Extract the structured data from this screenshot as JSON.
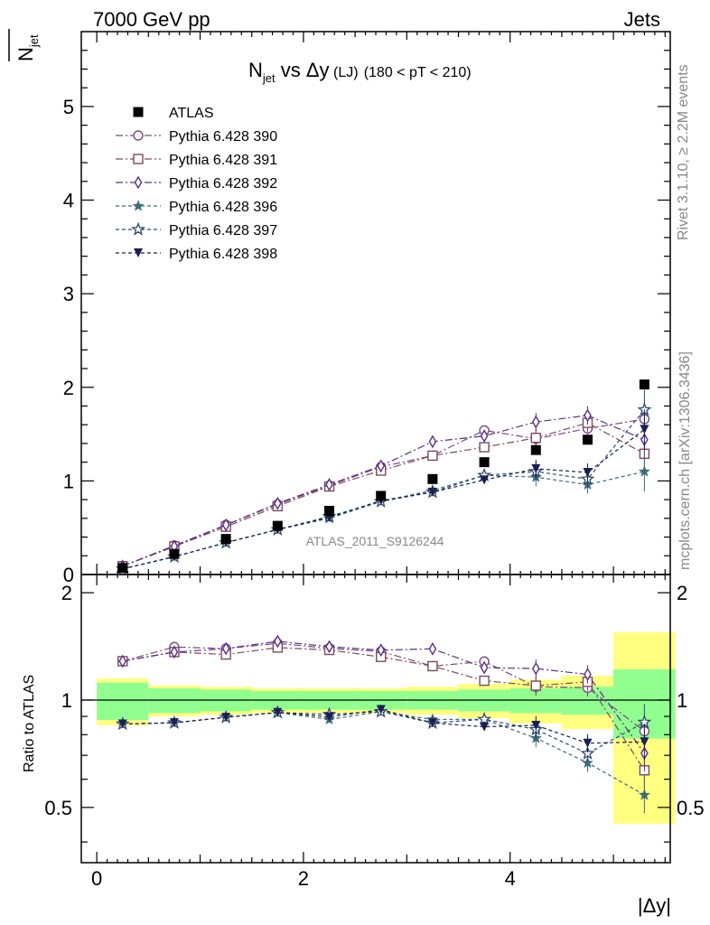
{
  "header": {
    "left": "7000 GeV pp",
    "right": "Jets"
  },
  "side_labels": {
    "rivet": "Rivet 3.1.10, ≥ 2.2M events",
    "mcplots": "mcplots.cern.ch [arXiv:1306.3436]"
  },
  "chart_data": {
    "type": "scatter",
    "title": "N_jet vs Δy (LJ) (180 < pT < 210)",
    "title_parts": {
      "n": "N",
      "sub": "jet",
      "vs": " vs ",
      "dy": "Δy",
      "lj": " (LJ)",
      "cut": "(180 < pT < 210)"
    },
    "watermark": "ATLAS_2011_S9126244",
    "xlabel": "|Δy|",
    "ylabel": {
      "n": "N",
      "sub": "jet"
    },
    "ratio_ylabel": "Ratio to ATLAS",
    "xlim": [
      -0.15,
      5.55
    ],
    "ylim": [
      0,
      5.8
    ],
    "ratio_ylim": [
      0.35,
      2.25
    ],
    "x_ticks": [
      "0",
      "2",
      "4"
    ],
    "y_ticks": [
      "0",
      "1",
      "2",
      "3",
      "4",
      "5"
    ],
    "ratio_ticks_left": [
      "0.5",
      "1",
      "2"
    ],
    "ratio_ticks_right": [
      "0.5",
      "1",
      "2"
    ],
    "x": [
      0.25,
      0.75,
      1.25,
      1.75,
      2.25,
      2.75,
      3.25,
      3.75,
      4.25,
      4.75,
      5.3
    ],
    "xerr": [
      0.25,
      0.25,
      0.25,
      0.25,
      0.25,
      0.25,
      0.25,
      0.25,
      0.25,
      0.25,
      0.3
    ],
    "data": {
      "name": "ATLAS",
      "color": "#000000",
      "values": [
        0.07,
        0.22,
        0.38,
        0.52,
        0.68,
        0.84,
        1.02,
        1.2,
        1.33,
        1.44,
        2.03
      ]
    },
    "series": [
      {
        "name": "Pythia 6.428 390",
        "color": "#7a4a7e",
        "marker": "circle-open",
        "dash": "8,3,2,3",
        "values": [
          0.09,
          0.31,
          0.53,
          0.75,
          0.95,
          1.15,
          1.27,
          1.54,
          1.45,
          1.56,
          1.66
        ]
      },
      {
        "name": "Pythia 6.428 391",
        "color": "#7d4a5e",
        "marker": "square-open",
        "dash": "8,3,2,3",
        "values": [
          0.09,
          0.3,
          0.51,
          0.73,
          0.94,
          1.11,
          1.27,
          1.36,
          1.46,
          1.62,
          1.29
        ]
      },
      {
        "name": "Pythia 6.428 392",
        "color": "#5a2e8a",
        "marker": "diamond-open",
        "dash": "8,3,2,3",
        "values": [
          0.09,
          0.3,
          0.53,
          0.76,
          0.96,
          1.16,
          1.42,
          1.48,
          1.63,
          1.7,
          1.44
        ]
      },
      {
        "name": "Pythia 6.428 396",
        "color": "#3f6a7a",
        "marker": "star-filled",
        "dash": "4,3",
        "values": [
          0.06,
          0.19,
          0.34,
          0.48,
          0.6,
          0.78,
          0.9,
          1.06,
          1.04,
          0.96,
          1.1
        ]
      },
      {
        "name": "Pythia 6.428 397",
        "color": "#2e4a6e",
        "marker": "star-open",
        "dash": "4,3",
        "values": [
          0.06,
          0.19,
          0.34,
          0.48,
          0.62,
          0.78,
          0.88,
          1.06,
          1.1,
          1.02,
          1.76
        ]
      },
      {
        "name": "Pythia 6.428 398",
        "color": "#1a2050",
        "marker": "triangle-down-filled",
        "dash": "4,3",
        "values": [
          0.06,
          0.19,
          0.34,
          0.48,
          0.61,
          0.79,
          0.88,
          1.01,
          1.13,
          1.09,
          1.55
        ]
      }
    ],
    "ratio_band_inner": [
      0.12,
      0.08,
      0.07,
      0.06,
      0.06,
      0.06,
      0.06,
      0.07,
      0.08,
      0.09,
      0.22
    ],
    "ratio_band_outer": [
      0.15,
      0.1,
      0.09,
      0.08,
      0.08,
      0.08,
      0.09,
      0.11,
      0.14,
      0.17,
      0.55
    ],
    "ratio_band_colors": {
      "inner": "#90ff90",
      "outer": "#ffff80"
    }
  }
}
